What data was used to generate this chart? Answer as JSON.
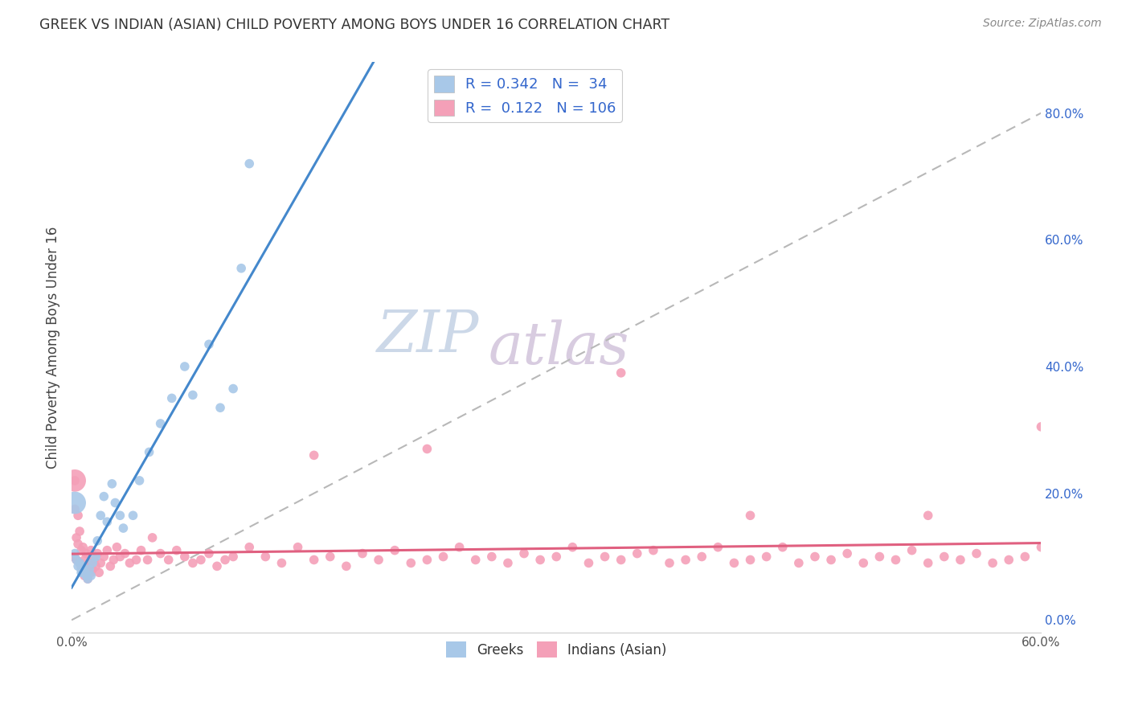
{
  "title": "GREEK VS INDIAN (ASIAN) CHILD POVERTY AMONG BOYS UNDER 16 CORRELATION CHART",
  "source": "Source: ZipAtlas.com",
  "ylabel": "Child Poverty Among Boys Under 16",
  "xlim": [
    0.0,
    0.6
  ],
  "ylim": [
    -0.02,
    0.88
  ],
  "xticks": [
    0.0,
    0.1,
    0.2,
    0.3,
    0.4,
    0.5,
    0.6
  ],
  "xticklabels": [
    "0.0%",
    "",
    "",
    "",
    "",
    "",
    "60.0%"
  ],
  "yticks_right": [
    0.0,
    0.2,
    0.4,
    0.6,
    0.8
  ],
  "ytick_right_labels": [
    "0.0%",
    "20.0%",
    "40.0%",
    "60.0%",
    "80.0%"
  ],
  "greek_R": 0.342,
  "greek_N": 34,
  "indian_R": 0.122,
  "indian_N": 106,
  "greek_color": "#a8c8e8",
  "indian_color": "#f4a0b8",
  "greek_line_color": "#4488cc",
  "indian_line_color": "#e06080",
  "background_color": "#ffffff",
  "watermark_zip": "ZIP",
  "watermark_atlas": "atlas",
  "greek_x": [
    0.002,
    0.003,
    0.004,
    0.005,
    0.006,
    0.006,
    0.007,
    0.008,
    0.009,
    0.01,
    0.011,
    0.012,
    0.013,
    0.015,
    0.016,
    0.018,
    0.02,
    0.022,
    0.025,
    0.027,
    0.03,
    0.032,
    0.038,
    0.042,
    0.048,
    0.055,
    0.062,
    0.07,
    0.075,
    0.085,
    0.092,
    0.1,
    0.105,
    0.11
  ],
  "greek_y": [
    0.105,
    0.095,
    0.085,
    0.09,
    0.08,
    0.075,
    0.085,
    0.075,
    0.07,
    0.065,
    0.08,
    0.07,
    0.09,
    0.1,
    0.125,
    0.165,
    0.195,
    0.155,
    0.215,
    0.185,
    0.165,
    0.145,
    0.165,
    0.22,
    0.265,
    0.31,
    0.35,
    0.4,
    0.355,
    0.435,
    0.335,
    0.365,
    0.555,
    0.72
  ],
  "greek_large_x": [
    0.002
  ],
  "greek_large_y": [
    0.185
  ],
  "indian_x": [
    0.001,
    0.002,
    0.002,
    0.003,
    0.003,
    0.004,
    0.004,
    0.005,
    0.005,
    0.006,
    0.006,
    0.007,
    0.007,
    0.008,
    0.008,
    0.009,
    0.009,
    0.01,
    0.01,
    0.011,
    0.012,
    0.012,
    0.013,
    0.014,
    0.015,
    0.016,
    0.017,
    0.018,
    0.02,
    0.022,
    0.024,
    0.026,
    0.028,
    0.03,
    0.033,
    0.036,
    0.04,
    0.043,
    0.047,
    0.05,
    0.055,
    0.06,
    0.065,
    0.07,
    0.075,
    0.08,
    0.085,
    0.09,
    0.095,
    0.1,
    0.11,
    0.12,
    0.13,
    0.14,
    0.15,
    0.16,
    0.17,
    0.18,
    0.19,
    0.2,
    0.21,
    0.22,
    0.23,
    0.24,
    0.25,
    0.26,
    0.27,
    0.28,
    0.29,
    0.3,
    0.31,
    0.32,
    0.33,
    0.34,
    0.35,
    0.36,
    0.37,
    0.38,
    0.39,
    0.4,
    0.41,
    0.42,
    0.43,
    0.44,
    0.45,
    0.46,
    0.47,
    0.48,
    0.49,
    0.5,
    0.51,
    0.52,
    0.53,
    0.54,
    0.55,
    0.56,
    0.57,
    0.58,
    0.59,
    0.6,
    0.15,
    0.22,
    0.34,
    0.53,
    0.6,
    0.42
  ],
  "indian_y": [
    0.1,
    0.22,
    0.175,
    0.13,
    0.095,
    0.165,
    0.12,
    0.09,
    0.14,
    0.11,
    0.085,
    0.115,
    0.08,
    0.095,
    0.07,
    0.105,
    0.075,
    0.085,
    0.065,
    0.09,
    0.075,
    0.11,
    0.08,
    0.095,
    0.085,
    0.105,
    0.075,
    0.09,
    0.1,
    0.11,
    0.085,
    0.095,
    0.115,
    0.1,
    0.105,
    0.09,
    0.095,
    0.11,
    0.095,
    0.13,
    0.105,
    0.095,
    0.11,
    0.1,
    0.09,
    0.095,
    0.105,
    0.085,
    0.095,
    0.1,
    0.115,
    0.1,
    0.09,
    0.115,
    0.095,
    0.1,
    0.085,
    0.105,
    0.095,
    0.11,
    0.09,
    0.095,
    0.1,
    0.115,
    0.095,
    0.1,
    0.09,
    0.105,
    0.095,
    0.1,
    0.115,
    0.09,
    0.1,
    0.095,
    0.105,
    0.11,
    0.09,
    0.095,
    0.1,
    0.115,
    0.09,
    0.095,
    0.1,
    0.115,
    0.09,
    0.1,
    0.095,
    0.105,
    0.09,
    0.1,
    0.095,
    0.11,
    0.09,
    0.1,
    0.095,
    0.105,
    0.09,
    0.095,
    0.1,
    0.115,
    0.26,
    0.27,
    0.39,
    0.165,
    0.305,
    0.165
  ],
  "indian_large_x": [
    0.002
  ],
  "indian_large_y": [
    0.22
  ]
}
